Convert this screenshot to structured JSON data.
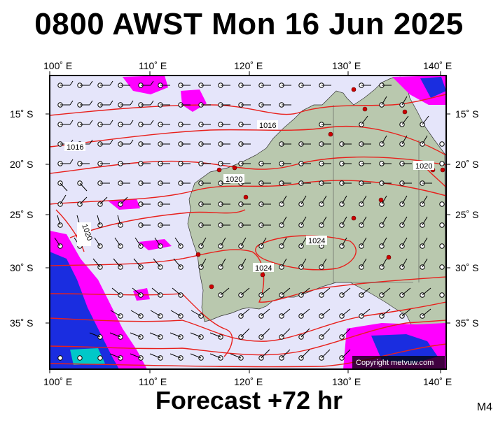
{
  "title": "0800 AWST Mon 16 Jun 2025",
  "footer": "Forecast +72 hr",
  "model_code": "M4",
  "copyright": "Copyright metvuw.com",
  "lon_labels": [
    "100˚ E",
    "110˚ E",
    "120˚ E",
    "130˚ E",
    "140˚ E"
  ],
  "lat_labels": [
    "15˚ S",
    "20˚ S",
    "25˚ S",
    "30˚ S",
    "35˚ S"
  ],
  "isobar_labels": [
    "1016",
    "1016",
    "1020",
    "1020",
    "1020",
    "1024",
    "1024"
  ],
  "colors": {
    "sea": "#e5e5fa",
    "land": "#b9c8ae",
    "isobar": "#e8201c",
    "precip_low": "#ff00ff",
    "precip_high": "#1a2de0"
  }
}
